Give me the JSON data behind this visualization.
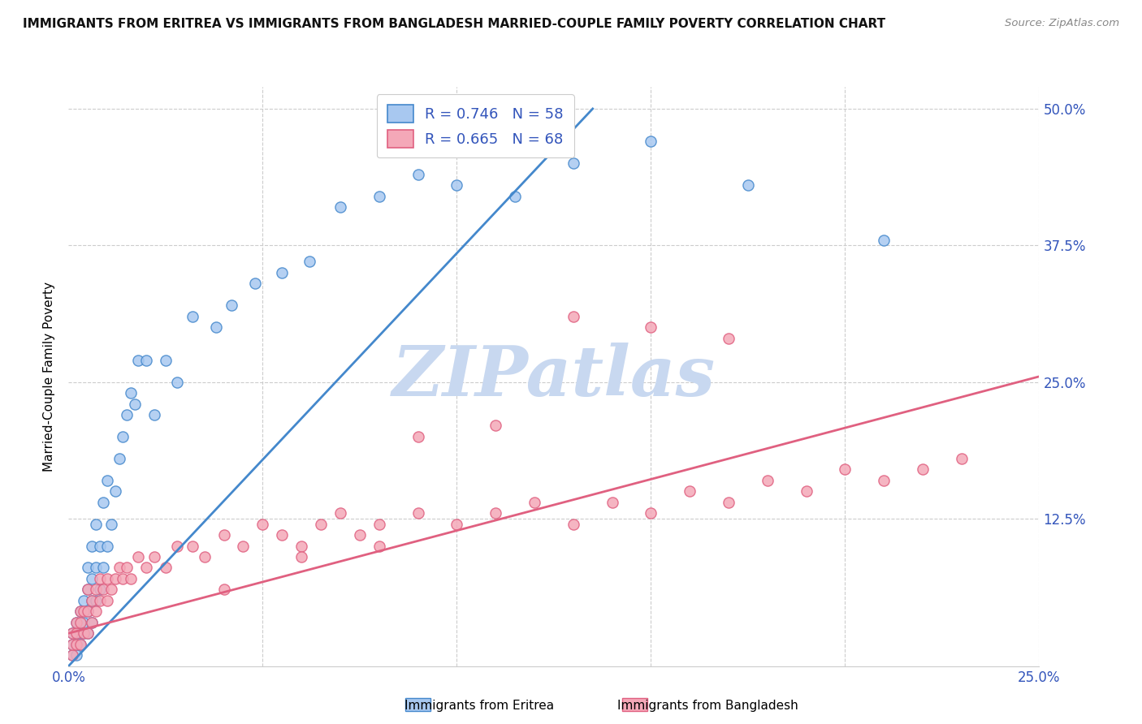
{
  "title": "IMMIGRANTS FROM ERITREA VS IMMIGRANTS FROM BANGLADESH MARRIED-COUPLE FAMILY POVERTY CORRELATION CHART",
  "source": "Source: ZipAtlas.com",
  "label_eritrea": "Immigrants from Eritrea",
  "label_bangladesh": "Immigrants from Bangladesh",
  "color_eritrea": "#a8c8f0",
  "color_bangladesh": "#f4a8b8",
  "line_eritrea": "#4488cc",
  "line_bangladesh": "#e06080",
  "watermark_text": "ZIPatlas",
  "watermark_color": "#c8d8f0",
  "eritrea_R": "0.746",
  "eritrea_N": "58",
  "bangladesh_R": "0.665",
  "bangladesh_N": "68",
  "xlim": [
    0.0,
    0.25
  ],
  "ylim": [
    -0.01,
    0.52
  ],
  "ytick_positions": [
    0.0,
    0.125,
    0.25,
    0.375,
    0.5
  ],
  "ytick_labels": [
    "",
    "12.5%",
    "25.0%",
    "37.5%",
    "50.0%"
  ],
  "eritrea_x": [
    0.001,
    0.001,
    0.001,
    0.002,
    0.002,
    0.002,
    0.002,
    0.003,
    0.003,
    0.003,
    0.003,
    0.004,
    0.004,
    0.004,
    0.005,
    0.005,
    0.005,
    0.005,
    0.006,
    0.006,
    0.006,
    0.006,
    0.007,
    0.007,
    0.007,
    0.008,
    0.008,
    0.009,
    0.009,
    0.01,
    0.01,
    0.011,
    0.012,
    0.013,
    0.014,
    0.015,
    0.016,
    0.017,
    0.018,
    0.02,
    0.022,
    0.025,
    0.028,
    0.032,
    0.038,
    0.042,
    0.048,
    0.055,
    0.062,
    0.07,
    0.08,
    0.09,
    0.1,
    0.115,
    0.13,
    0.15,
    0.175,
    0.21
  ],
  "eritrea_y": [
    0.0,
    0.01,
    0.02,
    0.0,
    0.01,
    0.02,
    0.03,
    0.01,
    0.02,
    0.03,
    0.04,
    0.02,
    0.03,
    0.05,
    0.02,
    0.04,
    0.06,
    0.08,
    0.03,
    0.05,
    0.07,
    0.1,
    0.05,
    0.08,
    0.12,
    0.06,
    0.1,
    0.08,
    0.14,
    0.1,
    0.16,
    0.12,
    0.15,
    0.18,
    0.2,
    0.22,
    0.24,
    0.23,
    0.27,
    0.27,
    0.22,
    0.27,
    0.25,
    0.31,
    0.3,
    0.32,
    0.34,
    0.35,
    0.36,
    0.41,
    0.42,
    0.44,
    0.43,
    0.42,
    0.45,
    0.47,
    0.43,
    0.38
  ],
  "bangladesh_x": [
    0.001,
    0.001,
    0.001,
    0.002,
    0.002,
    0.002,
    0.003,
    0.003,
    0.003,
    0.004,
    0.004,
    0.005,
    0.005,
    0.005,
    0.006,
    0.006,
    0.007,
    0.007,
    0.008,
    0.008,
    0.009,
    0.01,
    0.01,
    0.011,
    0.012,
    0.013,
    0.014,
    0.015,
    0.016,
    0.018,
    0.02,
    0.022,
    0.025,
    0.028,
    0.032,
    0.035,
    0.04,
    0.045,
    0.05,
    0.055,
    0.06,
    0.065,
    0.07,
    0.075,
    0.08,
    0.09,
    0.1,
    0.11,
    0.12,
    0.13,
    0.14,
    0.15,
    0.16,
    0.17,
    0.18,
    0.19,
    0.2,
    0.21,
    0.22,
    0.23,
    0.15,
    0.17,
    0.13,
    0.11,
    0.09,
    0.08,
    0.06,
    0.04
  ],
  "bangladesh_y": [
    0.0,
    0.01,
    0.02,
    0.01,
    0.02,
    0.03,
    0.01,
    0.03,
    0.04,
    0.02,
    0.04,
    0.02,
    0.04,
    0.06,
    0.03,
    0.05,
    0.04,
    0.06,
    0.05,
    0.07,
    0.06,
    0.05,
    0.07,
    0.06,
    0.07,
    0.08,
    0.07,
    0.08,
    0.07,
    0.09,
    0.08,
    0.09,
    0.08,
    0.1,
    0.1,
    0.09,
    0.11,
    0.1,
    0.12,
    0.11,
    0.1,
    0.12,
    0.13,
    0.11,
    0.12,
    0.13,
    0.12,
    0.13,
    0.14,
    0.12,
    0.14,
    0.13,
    0.15,
    0.14,
    0.16,
    0.15,
    0.17,
    0.16,
    0.17,
    0.18,
    0.3,
    0.29,
    0.31,
    0.21,
    0.2,
    0.1,
    0.09,
    0.06
  ],
  "blue_line_x0": 0.0,
  "blue_line_y0": -0.01,
  "blue_line_x1": 0.135,
  "blue_line_y1": 0.5,
  "pink_line_x0": 0.0,
  "pink_line_y0": 0.02,
  "pink_line_x1": 0.25,
  "pink_line_y1": 0.255
}
